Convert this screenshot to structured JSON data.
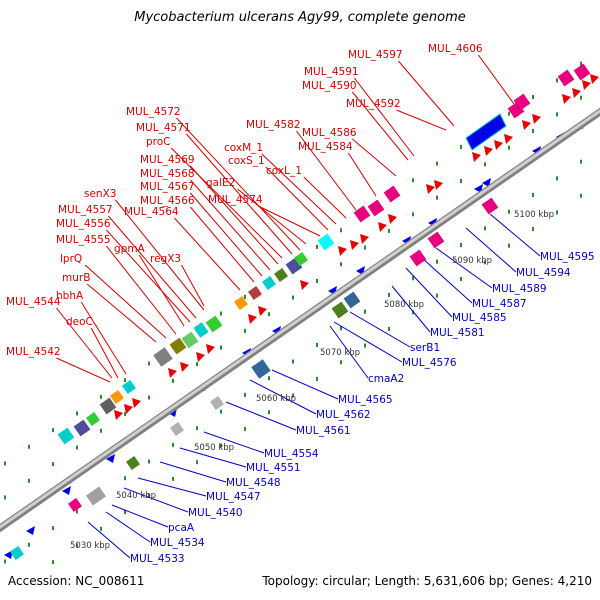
{
  "title": "Mycobacterium ulcerans Agy99, complete genome",
  "footer": {
    "accession": "Accession: NC_008611",
    "summary": "Topology: circular; Length: 5,631,606 bp; Genes: 4,210"
  },
  "colors": {
    "forward_label": "#d40000",
    "reverse_label": "#0000c8",
    "forward_gene": "#e60000",
    "reverse_gene": "#0000e6",
    "backbone": "#a0a0a0",
    "tick_dots": "#2c8a2c"
  },
  "axis_labels": [
    "5030 kbp",
    "5040 kbp",
    "5050 kbp",
    "5060 kbp",
    "5070 kbp",
    "5080 kbp",
    "5090 kbp",
    "5100 kbp"
  ],
  "forward_labels": [
    "MUL_4542",
    "deoC",
    "hbhA",
    "MUL_4544",
    "murB",
    "lprQ",
    "MUL_4555",
    "gpmA",
    "MUL_4556",
    "MUL_4557",
    "senX3",
    "regX3",
    "MUL_4564",
    "MUL_4566",
    "MUL_4567",
    "MUL_4568",
    "MUL_4569",
    "proC",
    "MUL_4571",
    "MUL_4572",
    "galE2",
    "MUL_4574",
    "coxS_1",
    "coxM_1",
    "coxL_1",
    "MUL_4582",
    "MUL_4584",
    "MUL_4586",
    "MUL_4590",
    "MUL_4591",
    "MUL_4592",
    "MUL_4597",
    "MUL_4606"
  ],
  "reverse_labels": [
    "MUL_4533",
    "MUL_4534",
    "pcaA",
    "MUL_4540",
    "MUL_4547",
    "MUL_4548",
    "MUL_4551",
    "MUL_4554",
    "MUL_4561",
    "MUL_4562",
    "MUL_4565",
    "cmaA2",
    "MUL_4576",
    "serB1",
    "MUL_4581",
    "MUL_4585",
    "MUL_4587",
    "MUL_4589",
    "MUL_4594",
    "MUL_4595"
  ]
}
